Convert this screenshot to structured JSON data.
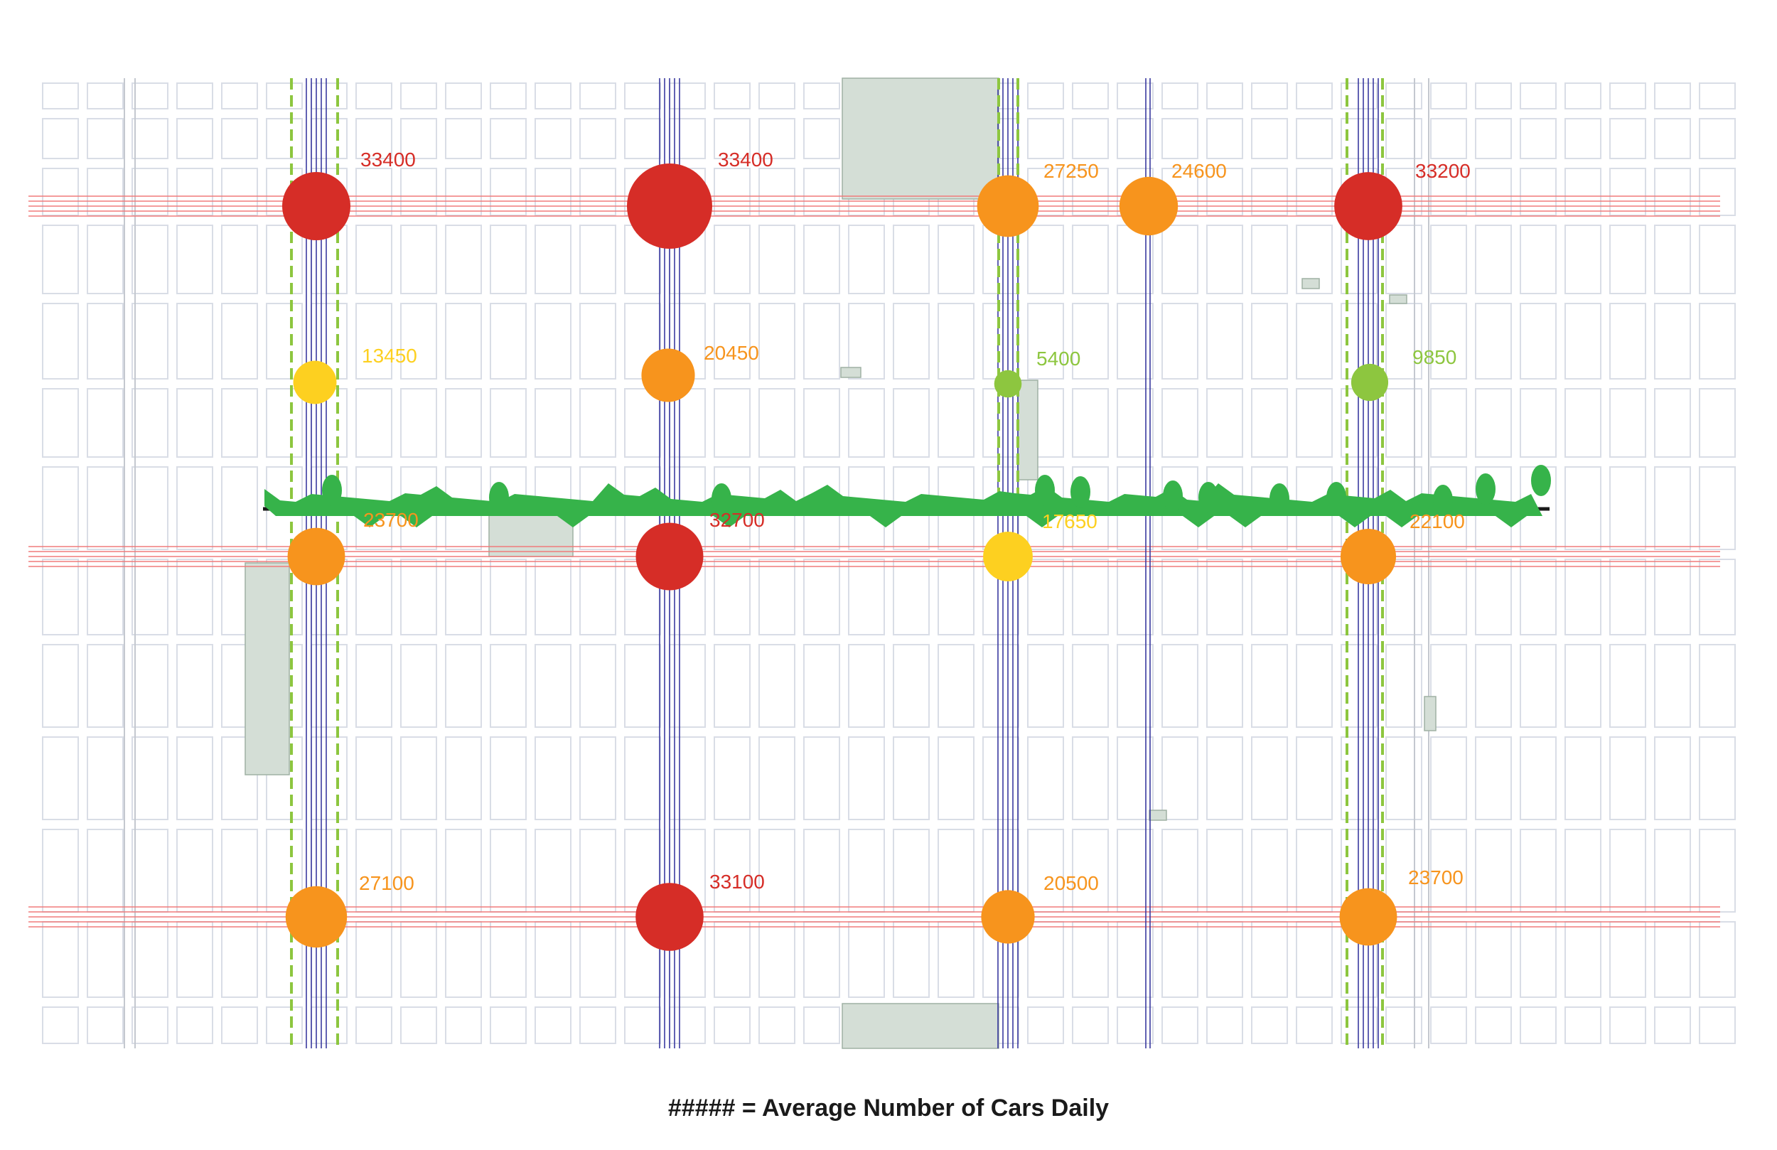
{
  "legend": {
    "caption": "##### = Average Number of Cars Daily"
  },
  "colors": {
    "high": "#d62d27",
    "medium_high": "#f7941d",
    "medium": "#fdd020",
    "low": "#8dc63f",
    "arterial_ew": "#f07b7b",
    "arterial_ns": "#3a3aa0",
    "bike_route": "#8dc63f",
    "greenway": "#36b34a",
    "blocks": "#d9dde6",
    "parks": "#d4ded6"
  },
  "traffic_counts": [
    {
      "id": "c1",
      "value": 33400,
      "label": "33400",
      "category": "high"
    },
    {
      "id": "c2",
      "value": 33400,
      "label": "33400",
      "category": "high"
    },
    {
      "id": "c3",
      "value": 27250,
      "label": "27250",
      "category": "medium_high"
    },
    {
      "id": "c4",
      "value": 24600,
      "label": "24600",
      "category": "medium_high"
    },
    {
      "id": "c5",
      "value": 33200,
      "label": "33200",
      "category": "high"
    },
    {
      "id": "c6",
      "value": 13450,
      "label": "13450",
      "category": "medium"
    },
    {
      "id": "c7",
      "value": 20450,
      "label": "20450",
      "category": "medium_high"
    },
    {
      "id": "c8",
      "value": 5400,
      "label": "5400",
      "category": "low"
    },
    {
      "id": "c9",
      "value": 9850,
      "label": "9850",
      "category": "low"
    },
    {
      "id": "c10",
      "value": 23700,
      "label": "23700",
      "category": "medium_high"
    },
    {
      "id": "c11",
      "value": 32700,
      "label": "32700",
      "category": "high"
    },
    {
      "id": "c12",
      "value": 17650,
      "label": "17650",
      "category": "medium"
    },
    {
      "id": "c13",
      "value": 22100,
      "label": "22100",
      "category": "medium_high"
    },
    {
      "id": "c14",
      "value": 27100,
      "label": "27100",
      "category": "medium_high"
    },
    {
      "id": "c15",
      "value": 33100,
      "label": "33100",
      "category": "high"
    },
    {
      "id": "c16",
      "value": 20500,
      "label": "20500",
      "category": "medium_high"
    },
    {
      "id": "c17",
      "value": 23700,
      "label": "23700",
      "category": "medium_high"
    }
  ]
}
